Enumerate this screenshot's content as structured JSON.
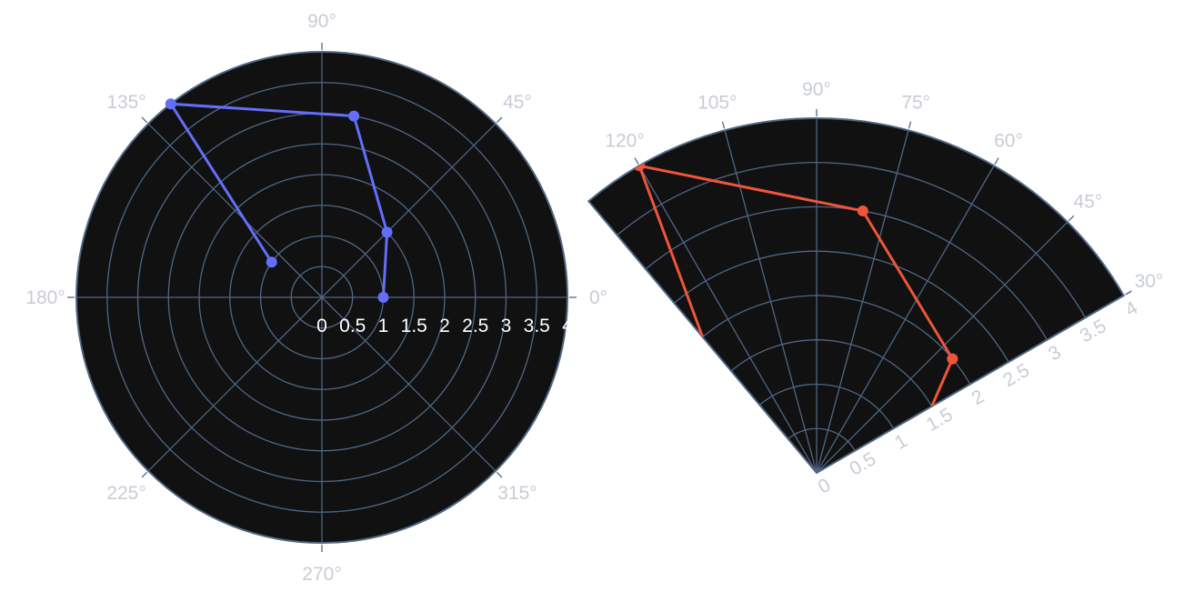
{
  "chart_data": [
    {
      "type": "line",
      "projection": "polar",
      "sector": [
        0,
        360
      ],
      "radial_range": [
        0,
        4
      ],
      "radial_ticks": [
        "0",
        "0.5",
        "1",
        "1.5",
        "2",
        "2.5",
        "3",
        "3.5",
        "4"
      ],
      "angular_ticks": [
        "0°",
        "45°",
        "90°",
        "135°",
        "180°",
        "225°",
        "270°",
        "315°"
      ],
      "background": "#111111",
      "grid_color": "#506784",
      "series": [
        {
          "color": "#636efa",
          "mode": "lines+markers",
          "theta": [
            0,
            45,
            80,
            128,
            145
          ],
          "r": [
            1,
            1.5,
            3,
            4,
            1
          ]
        }
      ]
    },
    {
      "type": "line",
      "projection": "polar",
      "sector": [
        30,
        130
      ],
      "radial_range": [
        0,
        4
      ],
      "radial_ticks": [
        "0",
        "0.5",
        "1",
        "1.5",
        "2",
        "2.5",
        "3",
        "3.5",
        "4"
      ],
      "angular_ticks": [
        "30°",
        "45°",
        "60°",
        "75°",
        "90°",
        "105°",
        "120°"
      ],
      "background": "#111111",
      "grid_color": "#506784",
      "series": [
        {
          "color": "#ef553b",
          "mode": "lines+markers",
          "theta": [
            30,
            40,
            80,
            120,
            130
          ],
          "r": [
            1.5,
            2,
            3,
            4,
            2
          ]
        }
      ]
    }
  ]
}
